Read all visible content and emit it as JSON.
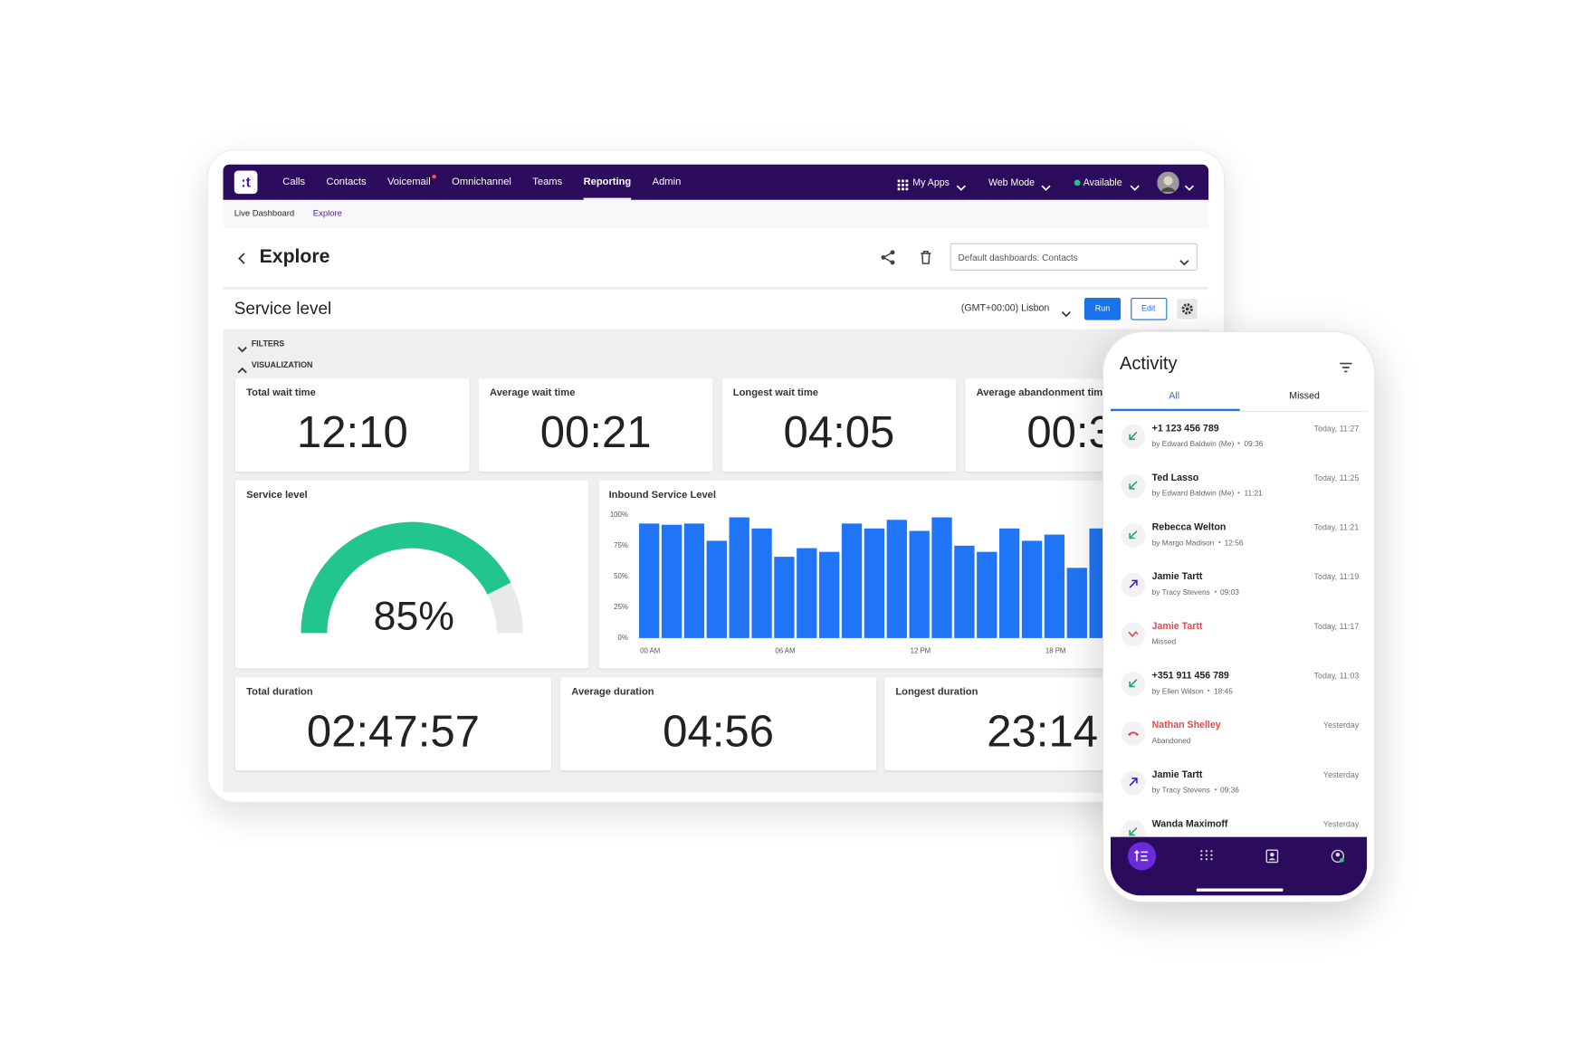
{
  "nav": {
    "logo": ":t",
    "items": [
      "Calls",
      "Contacts",
      "Voicemail",
      "Omnichannel",
      "Teams",
      "Reporting",
      "Admin"
    ],
    "right": [
      "My Apps",
      "Web Mode",
      "Available"
    ]
  },
  "breadcrumbs": [
    "Live Dashboard",
    "Explore"
  ],
  "header": {
    "title": "Explore",
    "dashboard_select": "Default dashboards: Contacts"
  },
  "report": {
    "title": "Service level",
    "timezone": "(GMT+00:00) Lisbon",
    "buttons": [
      "Run",
      "Edit"
    ]
  },
  "sections": [
    "FILTERS",
    "VISUALIZATION"
  ],
  "stats_top": [
    {
      "label": "Total wait time",
      "value": "12:10"
    },
    {
      "label": "Average wait time",
      "value": "00:21"
    },
    {
      "label": "Longest wait time",
      "value": "04:05"
    },
    {
      "label": "Average abandonment time",
      "value": "00:3"
    }
  ],
  "stats_bottom": [
    {
      "label": "Total duration",
      "value": "02:47:57"
    },
    {
      "label": "Average duration",
      "value": "04:56"
    },
    {
      "label": "Longest duration",
      "value": "23:14"
    }
  ],
  "chart_data": [
    {
      "type": "gauge",
      "title": "Service level",
      "values": [
        85
      ],
      "value_labels": [
        "85%"
      ],
      "ylim": [
        0,
        100
      ],
      "color": "#22c58b"
    },
    {
      "type": "bar",
      "title": "Inbound Service Level",
      "categories": [
        "00 AM",
        null,
        null,
        null,
        null,
        null,
        "06 AM",
        null,
        null,
        null,
        null,
        null,
        "12 PM",
        null,
        null,
        null,
        null,
        null,
        "18 PM",
        null,
        null
      ],
      "values": [
        93,
        92,
        93,
        79,
        98,
        89,
        66,
        73,
        70,
        93,
        89,
        96,
        87,
        98,
        75,
        70,
        89,
        79,
        84,
        57,
        89
      ],
      "color": "#1f75f5",
      "ylim": [
        0,
        100
      ],
      "yticks": [
        {
          "value": 0,
          "label": "0%"
        },
        {
          "value": 25,
          "label": "25%"
        },
        {
          "value": 50,
          "label": "50%"
        },
        {
          "value": 75,
          "label": "75%"
        },
        {
          "value": 100,
          "label": "100%"
        }
      ]
    }
  ],
  "phone": {
    "title": "Activity",
    "tabs": [
      "All",
      "Missed"
    ],
    "items": [
      {
        "name": "+1 123 456 789",
        "by": "by Edward Baldwin (Me)",
        "duration": "09:36",
        "time": "Today, 11:27"
      },
      {
        "name": "Ted Lasso",
        "by": "by Edward Baldwin (Me)",
        "duration": "11:21",
        "time": "Today, 11:25"
      },
      {
        "name": "Rebecca Welton",
        "by": "by Margo Madison",
        "duration": "12:56",
        "time": "Today, 11:21"
      },
      {
        "name": "Jamie Tartt",
        "by": "by Tracy Stevens",
        "duration": "09:03",
        "time": "Today, 11:19"
      },
      {
        "name": "Jamie Tartt",
        "by": "Missed",
        "time": "Today, 11:17"
      },
      {
        "name": "+351 911 456 789",
        "by": "by Ellen Wilson",
        "duration": "18:45",
        "time": "Today, 11:03"
      },
      {
        "name": "Nathan Shelley",
        "by": "Abandoned",
        "time": "Yesterday"
      },
      {
        "name": "Jamie Tartt",
        "by": "by Tracy Stevens",
        "duration": "09:36",
        "time": "Yesterday"
      },
      {
        "name": "Wanda Maximoff",
        "time": "Yesterday"
      }
    ]
  }
}
